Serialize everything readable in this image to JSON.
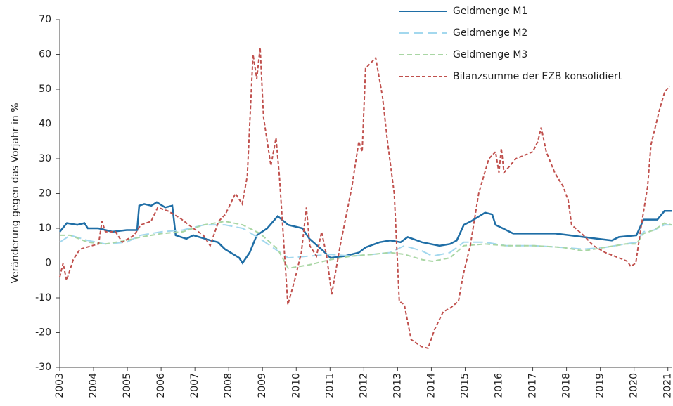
{
  "chart_data": {
    "type": "line",
    "y_label": "Veränderung gegen das Vorjahr in %",
    "xlim": [
      2003,
      2021.11
    ],
    "xticks": [
      2003,
      2004,
      2005,
      2006,
      2007,
      2008,
      2009,
      2010,
      2011,
      2012,
      2013,
      2014,
      2015,
      2016,
      2017,
      2018,
      2019,
      2020,
      2021
    ],
    "ylim": [
      -30,
      70
    ],
    "yticks": [
      -30,
      -20,
      -10,
      0,
      10,
      20,
      30,
      40,
      50,
      60,
      70
    ],
    "grid": false,
    "legend": "upper right",
    "series": [
      {
        "name": "Geldmenge M1",
        "color": "#1f6ea6",
        "dash": "solid",
        "x": [
          2003,
          2003.21,
          2003.52,
          2003.73,
          2003.83,
          2004.14,
          2004.56,
          2004.98,
          2005.29,
          2005.35,
          2005.5,
          2005.71,
          2005.87,
          2006.12,
          2006.33,
          2006.43,
          2006.75,
          2006.95,
          2007.47,
          2007.68,
          2007.89,
          2008.31,
          2008.41,
          2008.62,
          2008.83,
          2009.14,
          2009.45,
          2009.76,
          2010.18,
          2010.39,
          2010.8,
          2011.01,
          2011.43,
          2011.85,
          2012.05,
          2012.47,
          2012.78,
          2013.09,
          2013.3,
          2013.72,
          2014.24,
          2014.55,
          2014.75,
          2014.96,
          2015.17,
          2015.59,
          2015.8,
          2015.9,
          2016.11,
          2016.42,
          2017.05,
          2017.67,
          2018.09,
          2018.5,
          2018.92,
          2019.34,
          2019.55,
          2020.07,
          2020.28,
          2020.69,
          2020.9,
          2021.11
        ],
        "values": [
          9,
          11.5,
          11,
          11.5,
          10,
          10,
          9,
          9.5,
          9.5,
          16.5,
          17,
          16.5,
          17.5,
          16,
          16.5,
          8,
          7,
          8,
          6.5,
          6,
          4,
          1.5,
          0,
          3,
          8,
          10,
          13.5,
          11,
          10,
          7,
          3.5,
          1.5,
          2,
          3,
          4.5,
          6,
          6.5,
          6,
          7.5,
          6,
          5,
          5.5,
          6.5,
          11,
          12,
          14.5,
          14,
          11,
          10,
          8.5,
          8.5,
          8.5,
          8,
          7.5,
          7,
          6.5,
          7.5,
          8,
          12.5,
          12.5,
          15,
          15
        ]
      },
      {
        "name": "Geldmenge M2",
        "color": "#a3d8ee",
        "dash": "long",
        "x": [
          2003,
          2003.31,
          2003.83,
          2004.35,
          2004.98,
          2005.39,
          2006.02,
          2006.64,
          2007.27,
          2007.89,
          2008.41,
          2008.93,
          2009.45,
          2009.76,
          2010.39,
          2011.01,
          2011.64,
          2012.26,
          2012.78,
          2013.2,
          2013.72,
          2014.03,
          2014.55,
          2014.96,
          2015.59,
          2016.22,
          2017.05,
          2017.88,
          2018.5,
          2019.13,
          2019.75,
          2020.07,
          2020.28,
          2020.59,
          2020.9,
          2021.11
        ],
        "values": [
          6,
          8,
          6.5,
          5.5,
          6,
          8,
          9,
          9.5,
          11,
          11,
          10,
          7,
          3.5,
          1.5,
          2,
          2.5,
          2,
          2.5,
          3,
          5,
          3.5,
          2,
          3,
          6,
          6,
          5,
          5,
          4.5,
          4,
          4.5,
          5.5,
          6,
          9,
          9.5,
          11,
          11
        ]
      },
      {
        "name": "Geldmenge M3",
        "color": "#a9d6a4",
        "dash": "medium",
        "x": [
          2003,
          2003.31,
          2003.83,
          2004.35,
          2004.98,
          2005.39,
          2006.02,
          2006.64,
          2007.27,
          2007.89,
          2008.41,
          2008.93,
          2009.45,
          2009.76,
          2010.39,
          2011.01,
          2011.64,
          2012.26,
          2012.78,
          2013.2,
          2013.72,
          2014.03,
          2014.55,
          2014.96,
          2015.59,
          2016.22,
          2017.05,
          2017.88,
          2018.5,
          2019.13,
          2019.75,
          2020.07,
          2020.28,
          2020.59,
          2020.9,
          2021.11
        ],
        "values": [
          8,
          8,
          6,
          5.5,
          6.5,
          7.5,
          8.5,
          9,
          11,
          12,
          11,
          8.5,
          4,
          -1.5,
          -0.5,
          1,
          2,
          2.5,
          3,
          2.5,
          1,
          0.5,
          1.5,
          5,
          5.5,
          5,
          5,
          4.5,
          3.5,
          4.5,
          5.5,
          5.5,
          8.5,
          9.5,
          11.5,
          11
        ]
      },
      {
        "name": "Bilanzsumme der EZB konsolidiert",
        "color": "#c0504d",
        "dash": "short",
        "x": [
          2003,
          2003.1,
          2003.2,
          2003.4,
          2003.6,
          2003.95,
          2004.15,
          2004.25,
          2004.35,
          2004.65,
          2004.85,
          2005.2,
          2005.4,
          2005.7,
          2005.9,
          2006.2,
          2006.55,
          2006.95,
          2007.25,
          2007.45,
          2007.7,
          2007.9,
          2008.2,
          2008.4,
          2008.55,
          2008.72,
          2008.83,
          2008.93,
          2009.03,
          2009.25,
          2009.4,
          2009.5,
          2009.75,
          2009.95,
          2010.15,
          2010.3,
          2010.4,
          2010.6,
          2010.75,
          2010.9,
          2011.05,
          2011.3,
          2011.65,
          2011.85,
          2011.95,
          2012.05,
          2012.35,
          2012.55,
          2012.7,
          2012.9,
          2013.05,
          2013.2,
          2013.4,
          2013.7,
          2013.9,
          2014.1,
          2014.35,
          2014.55,
          2014.8,
          2014.95,
          2015.15,
          2015.4,
          2015.7,
          2015.9,
          2016.0,
          2016.07,
          2016.15,
          2016.5,
          2016.75,
          2017.0,
          2017.15,
          2017.25,
          2017.4,
          2017.65,
          2017.9,
          2018.05,
          2018.15,
          2018.5,
          2018.8,
          2019.15,
          2019.55,
          2019.8,
          2019.9,
          2020.05,
          2020.2,
          2020.4,
          2020.5,
          2020.6,
          2020.75,
          2020.9,
          2021.05
        ],
        "values": [
          -4,
          0,
          -5,
          1,
          4,
          5,
          5.5,
          12,
          9,
          9,
          6,
          8,
          11,
          12,
          16,
          15,
          13,
          10,
          8,
          5,
          12,
          14,
          20,
          17,
          25,
          60,
          53,
          62,
          42,
          28,
          36,
          25,
          -12,
          -5,
          3,
          16,
          5,
          2,
          9,
          2,
          -9,
          5,
          22,
          35,
          32,
          56,
          59,
          48,
          35,
          20,
          -11,
          -12,
          -22,
          -24,
          -24.5,
          -19,
          -14,
          -13,
          -11,
          -3,
          5,
          20,
          30,
          32,
          26,
          33,
          26,
          30,
          31,
          32,
          35,
          39,
          32,
          26,
          22,
          18,
          11,
          8,
          5,
          3,
          1.5,
          0.5,
          -1,
          0,
          10,
          22,
          34,
          38,
          44,
          49,
          51
        ]
      }
    ]
  }
}
